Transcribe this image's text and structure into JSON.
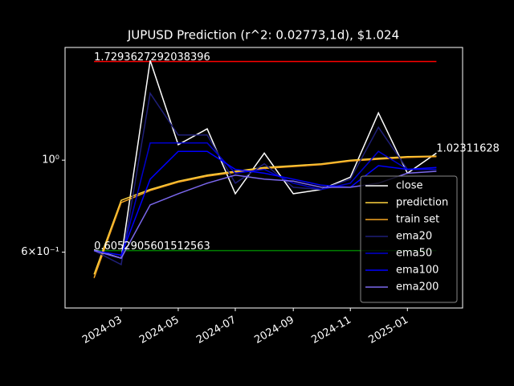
{
  "chart_data": {
    "type": "line",
    "title": "JUPUSD Prediction (r^2: 0.02773,1d), $1.024",
    "x": [
      "2024-02",
      "2024-03",
      "2024-04",
      "2024-05",
      "2024-06",
      "2024-07",
      "2024-08",
      "2024-09",
      "2024-10",
      "2024-11",
      "2024-12",
      "2025-01",
      "2025-02"
    ],
    "series": [
      {
        "name": "close",
        "color": "#ffffff",
        "values": [
          0.608,
          0.58,
          1.74,
          1.09,
          1.19,
          0.83,
          1.04,
          0.83,
          0.85,
          0.91,
          1.3,
          0.93,
          1.04
        ]
      },
      {
        "name": "prediction",
        "color": "#ffd23f",
        "values": [
          0.53,
          0.8,
          0.85,
          0.89,
          0.92,
          0.94,
          0.96,
          0.97,
          0.98,
          1.0,
          1.01,
          1.02,
          1.023
        ]
      },
      {
        "name": "train set",
        "color": "#f5a623",
        "values": [
          0.52,
          0.79,
          0.845,
          0.885,
          0.915,
          0.935,
          0.955,
          0.965,
          0.975,
          0.995,
          1.005,
          1.015,
          1.02
        ]
      },
      {
        "name": "ema20",
        "color": "#1f1f78",
        "values": [
          0.605,
          0.56,
          1.45,
          1.15,
          1.15,
          0.88,
          0.98,
          0.86,
          0.85,
          0.9,
          1.2,
          0.95,
          0.95
        ]
      },
      {
        "name": "ema50",
        "color": "#0000cd",
        "values": [
          0.605,
          0.58,
          1.1,
          1.1,
          1.1,
          0.93,
          0.95,
          0.88,
          0.85,
          0.88,
          1.05,
          0.95,
          0.95
        ]
      },
      {
        "name": "ema100",
        "color": "#0000ff",
        "values": [
          0.605,
          0.59,
          0.9,
          1.05,
          1.05,
          0.95,
          0.93,
          0.9,
          0.87,
          0.86,
          0.97,
          0.95,
          0.96
        ]
      },
      {
        "name": "ema200",
        "color": "#7b68ee",
        "values": [
          0.605,
          0.58,
          0.78,
          0.83,
          0.88,
          0.92,
          0.9,
          0.89,
          0.86,
          0.86,
          0.88,
          0.93,
          0.94
        ]
      }
    ],
    "hlines": [
      {
        "value": 1.7293627292038396,
        "color": "#ff0000"
      },
      {
        "value": 0.6052905601512563,
        "color": "#008000"
      }
    ],
    "end_label": 1.02311628,
    "xlim": [
      "2024-01",
      "2025-03"
    ],
    "xticks": [
      "2024-03",
      "2024-05",
      "2024-07",
      "2024-09",
      "2024-11",
      "2025-01"
    ],
    "ylim": [
      0.44,
      1.87
    ],
    "yticks": [
      {
        "value": 1,
        "label": "10⁰"
      },
      {
        "value": 0.6,
        "label": "6×10⁻¹"
      }
    ],
    "log_y": true,
    "legend": "lower right"
  }
}
